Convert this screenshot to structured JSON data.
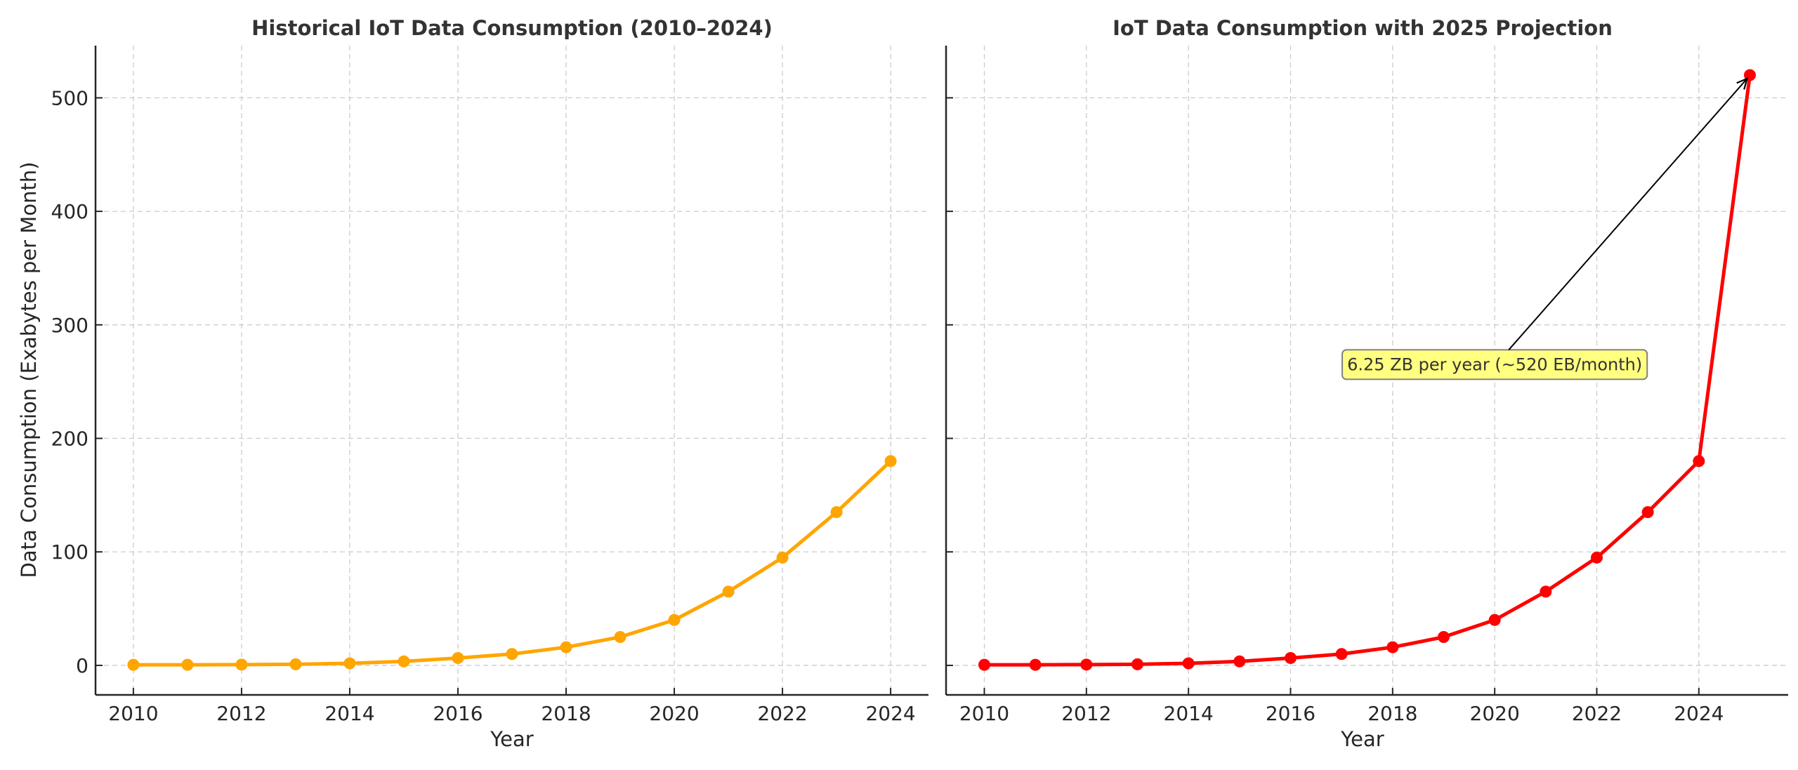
{
  "chart_data": [
    {
      "type": "line",
      "title": "Historical IoT Data Consumption (2010–2024)",
      "xlabel": "Year",
      "ylabel": "Data Consumption (Exabytes per Month)",
      "x": [
        2010,
        2011,
        2012,
        2013,
        2014,
        2015,
        2016,
        2017,
        2018,
        2019,
        2020,
        2021,
        2022,
        2023,
        2024
      ],
      "series": [
        {
          "name": "Historical",
          "color": "#FFA500",
          "marker": "circle",
          "values": [
            0.5,
            0.5,
            0.7,
            1,
            1.8,
            3.5,
            6.5,
            10,
            16,
            25,
            40,
            65,
            95,
            135,
            180
          ]
        }
      ],
      "xlim": [
        2009.3,
        2024.7
      ],
      "ylim": [
        -26,
        546
      ],
      "xticks": [
        2010,
        2012,
        2014,
        2016,
        2018,
        2020,
        2022,
        2024
      ],
      "xtick_labels": [
        "2010",
        "2012",
        "2014",
        "2016",
        "2018",
        "2020",
        "2022",
        "2024"
      ],
      "yticks": [
        0,
        100,
        200,
        300,
        400,
        500
      ],
      "ytick_labels": [
        "0",
        "100",
        "200",
        "300",
        "400",
        "500"
      ],
      "grid": true,
      "legend": null
    },
    {
      "type": "line",
      "title": "IoT Data Consumption with 2025 Projection",
      "xlabel": "Year",
      "ylabel": "",
      "x": [
        2010,
        2011,
        2012,
        2013,
        2014,
        2015,
        2016,
        2017,
        2018,
        2019,
        2020,
        2021,
        2022,
        2023,
        2024,
        2025
      ],
      "series": [
        {
          "name": "With 2025 Projection",
          "color": "#FF0000",
          "marker": "circle",
          "values": [
            0.5,
            0.5,
            0.7,
            1,
            1.8,
            3.5,
            6.5,
            10,
            16,
            25,
            40,
            65,
            95,
            135,
            180,
            520
          ]
        }
      ],
      "xlim": [
        2009.25,
        2025.75
      ],
      "ylim": [
        -26,
        546
      ],
      "xticks": [
        2010,
        2012,
        2014,
        2016,
        2018,
        2020,
        2022,
        2024
      ],
      "xtick_labels": [
        "2010",
        "2012",
        "2014",
        "2016",
        "2018",
        "2020",
        "2022",
        "2024"
      ],
      "yticks": [
        0,
        100,
        200,
        300,
        400,
        500
      ],
      "ytick_labels": [],
      "grid": true,
      "legend": null,
      "annotations": [
        {
          "text": "6.25 ZB per year (~520 EB/month)",
          "xy": [
            2025,
            520
          ],
          "xytext": [
            2020,
            265
          ],
          "arrow": true,
          "box_color": "#FFFF80",
          "box_edge": "#808080"
        }
      ]
    }
  ]
}
